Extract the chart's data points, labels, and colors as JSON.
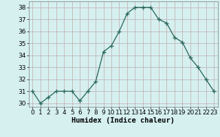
{
  "x": [
    0,
    1,
    2,
    3,
    4,
    5,
    6,
    7,
    8,
    9,
    10,
    11,
    12,
    13,
    14,
    15,
    16,
    17,
    18,
    19,
    20,
    21,
    22,
    23
  ],
  "y": [
    31,
    30,
    30.5,
    31,
    31,
    31,
    30.2,
    31,
    31.8,
    34.3,
    34.8,
    36,
    37.5,
    38,
    38,
    38,
    37,
    36.7,
    35.5,
    35.1,
    33.8,
    33,
    32,
    31
  ],
  "line_color": "#2e6b5e",
  "marker": "+",
  "marker_size": 4,
  "bg_color": "#d6f0f0",
  "grid_color": "#c0a8a8",
  "xlabel": "Humidex (Indice chaleur)",
  "xlabel_fontsize": 7.5,
  "yticks": [
    30,
    31,
    32,
    33,
    34,
    35,
    36,
    37,
    38
  ],
  "xticks": [
    0,
    1,
    2,
    3,
    4,
    5,
    6,
    7,
    8,
    9,
    10,
    11,
    12,
    13,
    14,
    15,
    16,
    17,
    18,
    19,
    20,
    21,
    22,
    23
  ],
  "ylim": [
    29.7,
    38.5
  ],
  "xlim": [
    -0.5,
    23.5
  ],
  "tick_fontsize": 6.5,
  "linewidth": 1.0,
  "title": ""
}
